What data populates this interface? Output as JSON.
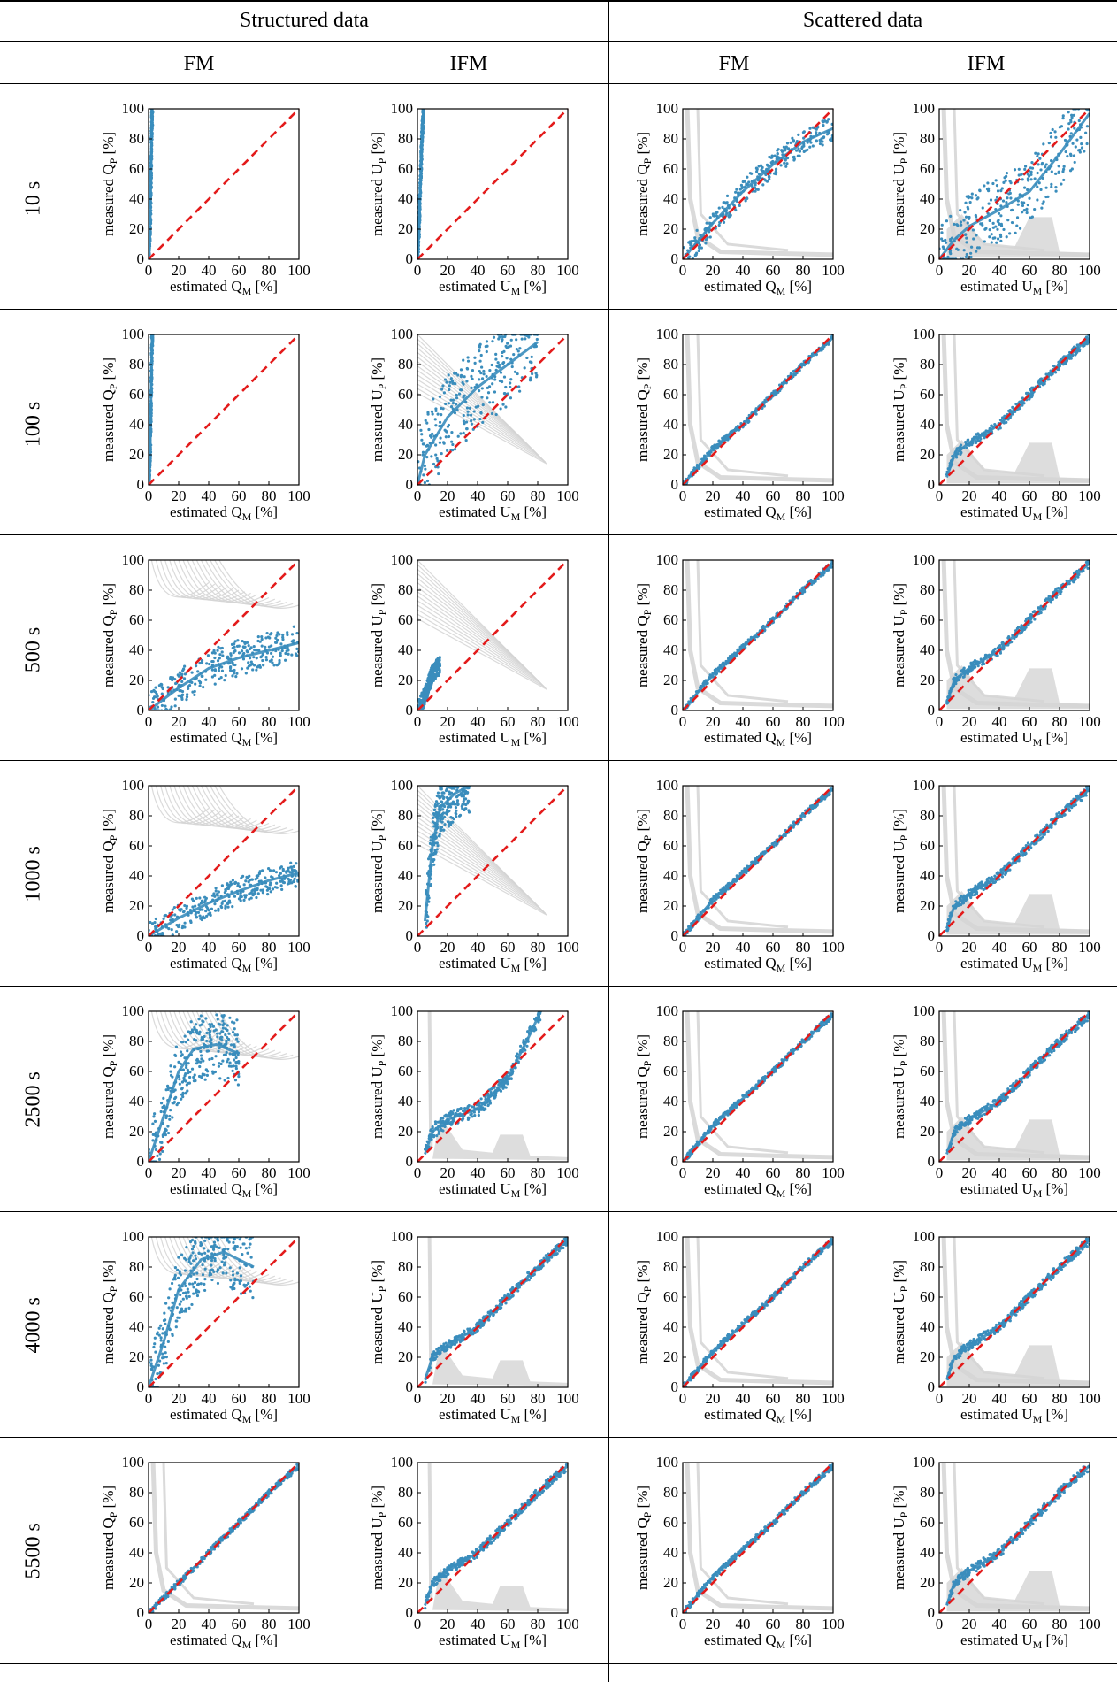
{
  "table": {
    "group_headers": [
      "Structured data",
      "Scattered data"
    ],
    "column_headers": [
      "FM",
      "IFM",
      "FM",
      "IFM"
    ],
    "row_labels": [
      "10 s",
      "100 s",
      "500 s",
      "1000 s",
      "2500 s",
      "4000 s",
      "5500 s"
    ]
  },
  "axis_text": {
    "x_prefix": "estimated ",
    "y_prefix": "measured ",
    "unit": " [%]",
    "q_main": "Q",
    "u_main": "U",
    "sub_x": "M",
    "sub_y": "P"
  },
  "colors": {
    "points": "#3a8dbc",
    "reference": "#e31b1b",
    "background": "#d4d4d4"
  },
  "chart_data": {
    "type": "scatter",
    "description_axes": {
      "xlim": [
        0,
        100
      ],
      "ylim": [
        0,
        100
      ],
      "ticks": [
        0,
        20,
        40,
        60,
        80,
        100
      ]
    },
    "reference_line": {
      "x": [
        0,
        100
      ],
      "y": [
        0,
        100
      ],
      "style": "dashed"
    },
    "panels": [
      [
        {
          "quantity": "Q",
          "curve": [
            [
              0,
              0
            ],
            [
              1,
              20
            ],
            [
              1.5,
              50
            ],
            [
              2,
              80
            ],
            [
              2.5,
              100
            ]
          ],
          "spread": 1,
          "bg": "none"
        },
        {
          "quantity": "U",
          "curve": [
            [
              0,
              0
            ],
            [
              1,
              20
            ],
            [
              2,
              50
            ],
            [
              3,
              80
            ],
            [
              4,
              100
            ]
          ],
          "spread": 2,
          "bg": "none"
        },
        {
          "quantity": "Q",
          "curve": [
            [
              0,
              0
            ],
            [
              10,
              12
            ],
            [
              20,
              24
            ],
            [
              40,
              45
            ],
            [
              60,
              63
            ],
            [
              80,
              78
            ],
            [
              100,
              87
            ]
          ],
          "spread": 8,
          "bg": "spike"
        },
        {
          "quantity": "U",
          "curve": [
            [
              0,
              0
            ],
            [
              10,
              13
            ],
            [
              20,
              22
            ],
            [
              40,
              33
            ],
            [
              60,
              45
            ],
            [
              80,
              70
            ],
            [
              100,
              97
            ]
          ],
          "spread": 22,
          "bg": "wide"
        }
      ],
      [
        {
          "quantity": "Q",
          "curve": [
            [
              0,
              0
            ],
            [
              1,
              20
            ],
            [
              1.5,
              50
            ],
            [
              2,
              80
            ],
            [
              2.5,
              100
            ]
          ],
          "spread": 1,
          "bg": "none"
        },
        {
          "quantity": "U",
          "curve": [
            [
              0,
              0
            ],
            [
              5,
              20
            ],
            [
              20,
              45
            ],
            [
              40,
              65
            ],
            [
              60,
              80
            ],
            [
              80,
              95
            ]
          ],
          "spread": 28,
          "bg": "diag"
        },
        {
          "quantity": "Q",
          "curve": [
            [
              0,
              0
            ],
            [
              10,
              12
            ],
            [
              20,
              24
            ],
            [
              40,
              40
            ],
            [
              60,
              60
            ],
            [
              80,
              80
            ],
            [
              100,
              98
            ]
          ],
          "spread": 2,
          "bg": "spike"
        },
        {
          "quantity": "U",
          "curve": [
            [
              5,
              5
            ],
            [
              10,
              20
            ],
            [
              20,
              28
            ],
            [
              40,
              40
            ],
            [
              60,
              60
            ],
            [
              80,
              80
            ],
            [
              100,
              98
            ]
          ],
          "spread": 3,
          "bg": "wide"
        }
      ],
      [
        {
          "quantity": "Q",
          "curve": [
            [
              0,
              0
            ],
            [
              20,
              15
            ],
            [
              40,
              28
            ],
            [
              60,
              35
            ],
            [
              80,
              40
            ],
            [
              100,
              45
            ]
          ],
          "spread": 12,
          "bg": "top"
        },
        {
          "quantity": "U",
          "curve": [
            [
              0,
              0
            ],
            [
              5,
              10
            ],
            [
              10,
              25
            ],
            [
              15,
              30
            ]
          ],
          "spread": 6,
          "bg": "diag"
        },
        {
          "quantity": "Q",
          "curve": [
            [
              0,
              0
            ],
            [
              10,
              12
            ],
            [
              20,
              24
            ],
            [
              40,
              42
            ],
            [
              60,
              60
            ],
            [
              80,
              80
            ],
            [
              100,
              98
            ]
          ],
          "spread": 2,
          "bg": "spike"
        },
        {
          "quantity": "U",
          "curve": [
            [
              5,
              5
            ],
            [
              10,
              20
            ],
            [
              20,
              28
            ],
            [
              40,
              40
            ],
            [
              60,
              60
            ],
            [
              80,
              80
            ],
            [
              100,
              98
            ]
          ],
          "spread": 3,
          "bg": "wide"
        }
      ],
      [
        {
          "quantity": "Q",
          "curve": [
            [
              0,
              0
            ],
            [
              20,
              12
            ],
            [
              40,
              22
            ],
            [
              60,
              30
            ],
            [
              80,
              37
            ],
            [
              100,
              42
            ]
          ],
          "spread": 9,
          "bg": "top"
        },
        {
          "quantity": "U",
          "curve": [
            [
              5,
              10
            ],
            [
              10,
              60
            ],
            [
              15,
              85
            ],
            [
              25,
              95
            ],
            [
              35,
              100
            ]
          ],
          "spread": 18,
          "bg": "diag"
        },
        {
          "quantity": "Q",
          "curve": [
            [
              0,
              0
            ],
            [
              10,
              12
            ],
            [
              20,
              24
            ],
            [
              40,
              42
            ],
            [
              60,
              60
            ],
            [
              80,
              80
            ],
            [
              100,
              98
            ]
          ],
          "spread": 2,
          "bg": "spike"
        },
        {
          "quantity": "U",
          "curve": [
            [
              5,
              5
            ],
            [
              10,
              20
            ],
            [
              20,
              28
            ],
            [
              40,
              40
            ],
            [
              60,
              60
            ],
            [
              80,
              80
            ],
            [
              100,
              98
            ]
          ],
          "spread": 3,
          "bg": "wide"
        }
      ],
      [
        {
          "quantity": "Q",
          "curve": [
            [
              0,
              0
            ],
            [
              10,
              30
            ],
            [
              20,
              60
            ],
            [
              30,
              75
            ],
            [
              45,
              78
            ],
            [
              60,
              72
            ]
          ],
          "spread": 22,
          "bg": "fan"
        },
        {
          "quantity": "U",
          "curve": [
            [
              5,
              5
            ],
            [
              10,
              20
            ],
            [
              20,
              28
            ],
            [
              40,
              35
            ],
            [
              60,
              55
            ],
            [
              75,
              85
            ],
            [
              82,
              100
            ]
          ],
          "spread": 5,
          "bg": "bumps"
        },
        {
          "quantity": "Q",
          "curve": [
            [
              0,
              0
            ],
            [
              10,
              12
            ],
            [
              20,
              24
            ],
            [
              40,
              42
            ],
            [
              60,
              60
            ],
            [
              80,
              80
            ],
            [
              100,
              98
            ]
          ],
          "spread": 2,
          "bg": "spike"
        },
        {
          "quantity": "U",
          "curve": [
            [
              5,
              5
            ],
            [
              10,
              20
            ],
            [
              20,
              28
            ],
            [
              40,
              40
            ],
            [
              60,
              60
            ],
            [
              80,
              80
            ],
            [
              100,
              98
            ]
          ],
          "spread": 3,
          "bg": "wide"
        }
      ],
      [
        {
          "quantity": "Q",
          "curve": [
            [
              0,
              0
            ],
            [
              10,
              30
            ],
            [
              20,
              65
            ],
            [
              35,
              85
            ],
            [
              50,
              90
            ],
            [
              70,
              80
            ]
          ],
          "spread": 22,
          "bg": "fan"
        },
        {
          "quantity": "U",
          "curve": [
            [
              5,
              5
            ],
            [
              10,
              20
            ],
            [
              20,
              28
            ],
            [
              40,
              40
            ],
            [
              60,
              60
            ],
            [
              80,
              80
            ],
            [
              100,
              98
            ]
          ],
          "spread": 3,
          "bg": "bumps"
        },
        {
          "quantity": "Q",
          "curve": [
            [
              0,
              0
            ],
            [
              10,
              12
            ],
            [
              20,
              24
            ],
            [
              40,
              42
            ],
            [
              60,
              60
            ],
            [
              80,
              80
            ],
            [
              100,
              98
            ]
          ],
          "spread": 2,
          "bg": "spike"
        },
        {
          "quantity": "U",
          "curve": [
            [
              5,
              5
            ],
            [
              10,
              20
            ],
            [
              20,
              28
            ],
            [
              40,
              40
            ],
            [
              60,
              60
            ],
            [
              80,
              80
            ],
            [
              100,
              98
            ]
          ],
          "spread": 3,
          "bg": "wide"
        }
      ],
      [
        {
          "quantity": "Q",
          "curve": [
            [
              0,
              0
            ],
            [
              10,
              10
            ],
            [
              20,
              20
            ],
            [
              40,
              40
            ],
            [
              60,
              60
            ],
            [
              80,
              80
            ],
            [
              100,
              98
            ]
          ],
          "spread": 2,
          "bg": "spike"
        },
        {
          "quantity": "U",
          "curve": [
            [
              5,
              5
            ],
            [
              10,
              20
            ],
            [
              20,
              28
            ],
            [
              40,
              40
            ],
            [
              60,
              60
            ],
            [
              80,
              80
            ],
            [
              100,
              98
            ]
          ],
          "spread": 3,
          "bg": "bumps"
        },
        {
          "quantity": "Q",
          "curve": [
            [
              0,
              0
            ],
            [
              10,
              12
            ],
            [
              20,
              24
            ],
            [
              40,
              42
            ],
            [
              60,
              60
            ],
            [
              80,
              80
            ],
            [
              100,
              98
            ]
          ],
          "spread": 2,
          "bg": "spike"
        },
        {
          "quantity": "U",
          "curve": [
            [
              5,
              5
            ],
            [
              10,
              20
            ],
            [
              20,
              28
            ],
            [
              40,
              40
            ],
            [
              60,
              60
            ],
            [
              80,
              80
            ],
            [
              100,
              98
            ]
          ],
          "spread": 3,
          "bg": "wide"
        }
      ]
    ]
  }
}
